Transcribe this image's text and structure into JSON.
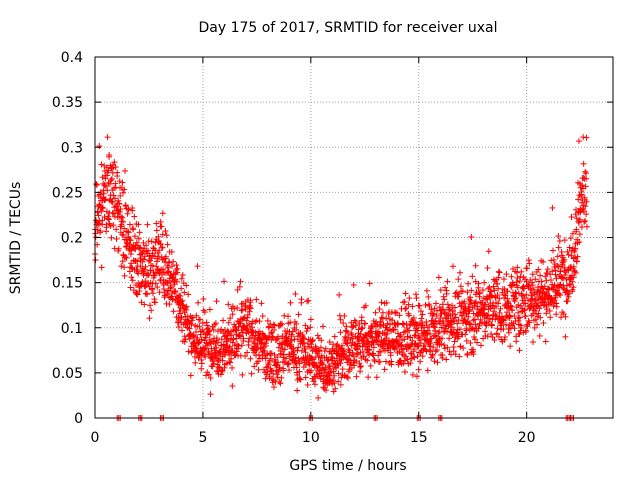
{
  "chart_data": {
    "type": "scatter",
    "title": "Day 175 of 2017, SRMTID for receiver uxal",
    "xlabel": "GPS time / hours",
    "ylabel": "SRMTID / TECUs",
    "xlim": [
      0,
      24
    ],
    "ylim": [
      0,
      0.4
    ],
    "grid": true,
    "marker": "plus",
    "color": "#ff0000",
    "xticks": [
      0,
      5,
      10,
      15,
      20
    ],
    "xtick_labels": [
      "0",
      "5",
      "10",
      "15",
      "20"
    ],
    "yticks": [
      0,
      0.05,
      0.1,
      0.15,
      0.2,
      0.25,
      0.3,
      0.35,
      0.4
    ],
    "ytick_labels": [
      "0",
      "0.05",
      "0.1",
      "0.15",
      "0.2",
      "0.25",
      "0.3",
      "0.35",
      "0.4"
    ],
    "series": [
      {
        "name": "SRMTID",
        "trend": {
          "x": [
            0.0,
            0.5,
            1.0,
            1.5,
            2.0,
            2.5,
            3.0,
            3.5,
            4.0,
            4.5,
            5.0,
            5.5,
            6.0,
            7.0,
            8.0,
            9.0,
            10.0,
            10.5,
            11.0,
            12.0,
            13.0,
            14.0,
            15.0,
            16.0,
            17.0,
            18.0,
            19.0,
            20.0,
            21.0,
            22.0,
            22.5,
            22.8
          ],
          "y": [
            0.2,
            0.25,
            0.24,
            0.2,
            0.17,
            0.16,
            0.18,
            0.16,
            0.13,
            0.09,
            0.08,
            0.08,
            0.08,
            0.1,
            0.07,
            0.08,
            0.07,
            0.055,
            0.06,
            0.08,
            0.09,
            0.09,
            0.085,
            0.1,
            0.11,
            0.12,
            0.12,
            0.13,
            0.14,
            0.16,
            0.24,
            0.26
          ]
        },
        "spread": 0.035,
        "x_range": [
          0,
          22.8
        ],
        "points_approx": 2400,
        "zero_points_x": [
          1.1,
          2.1,
          3.1,
          10.0,
          13.0,
          15.0,
          16.0,
          21.9,
          22.1
        ]
      }
    ]
  }
}
